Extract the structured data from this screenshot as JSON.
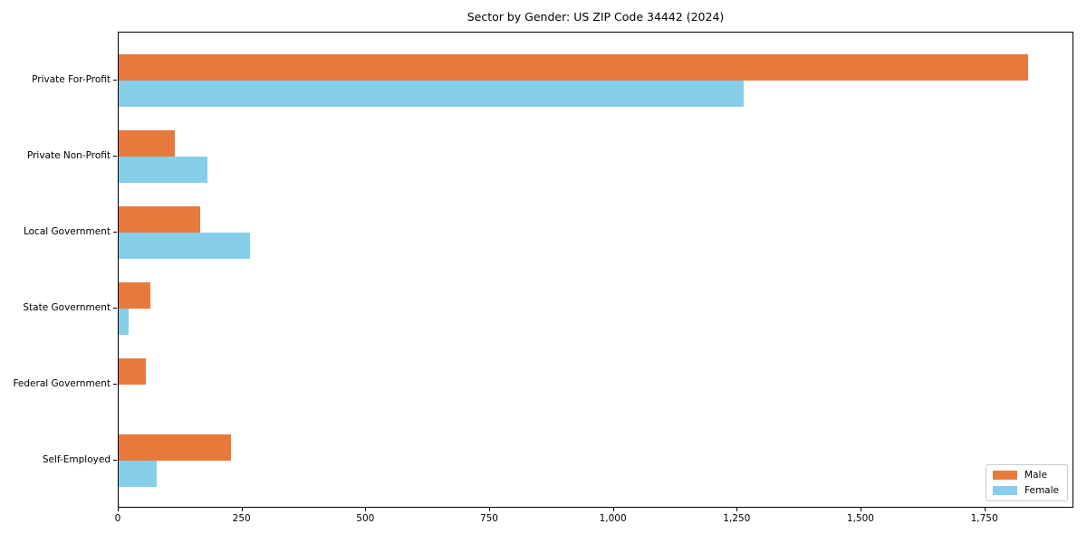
{
  "chart_data": {
    "type": "bar",
    "orientation": "horizontal",
    "title": "Sector by Gender: US ZIP Code 34442 (2024)",
    "categories": [
      "Private For-Profit",
      "Private Non-Profit",
      "Local Government",
      "State Government",
      "Federal Government",
      "Self-Employed"
    ],
    "series": [
      {
        "name": "Male",
        "color": "#e8793d",
        "values": [
          1836,
          113,
          165,
          64,
          54,
          227
        ]
      },
      {
        "name": "Female",
        "color": "#87ceeb",
        "values": [
          1262,
          180,
          266,
          20,
          0,
          76
        ]
      }
    ],
    "xlabel": "",
    "ylabel": "",
    "xlim": [
      0,
      1930
    ],
    "xtick_values": [
      0,
      250,
      500,
      750,
      1000,
      1250,
      1500,
      1750
    ],
    "xtick_labels": [
      "0",
      "250",
      "500",
      "750",
      "1,000",
      "1,250",
      "1,500",
      "1,750"
    ],
    "grid": false,
    "legend_position": "lower right"
  }
}
